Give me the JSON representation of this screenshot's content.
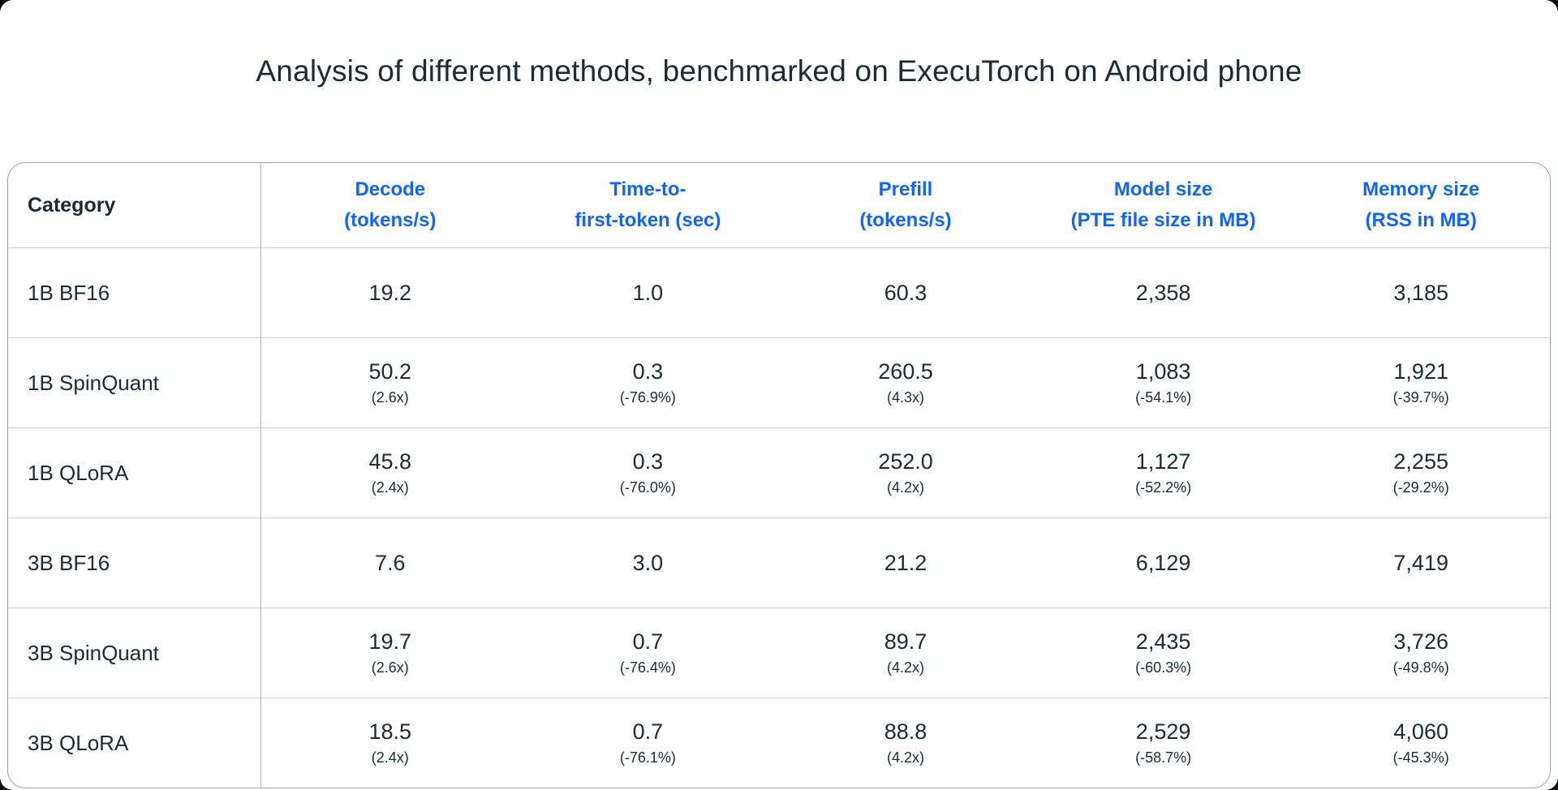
{
  "page": {
    "title": "Analysis of different methods, benchmarked on ExecuTorch on Android phone"
  },
  "colors": {
    "accent_blue": "#1165EF",
    "text_dark": "#1C2B33",
    "outer_border": "#97A4AE",
    "row_divider": "#C8D1D8",
    "column_divider": "#A9B5BE",
    "card_background": "#FFFFFF"
  },
  "table": {
    "category_header": "Category",
    "column_headers": [
      {
        "line1": "Decode",
        "line2": "(tokens/s)"
      },
      {
        "line1": "Time-to-",
        "line2": "first-token (sec)"
      },
      {
        "line1": "Prefill",
        "line2": "(tokens/s)"
      },
      {
        "line1": "Model size",
        "line2": "(PTE file size in MB)"
      },
      {
        "line1": "Memory size",
        "line2": "(RSS in MB)"
      }
    ],
    "rows": [
      {
        "category": "1B BF16",
        "cells": [
          {
            "value": "19.2",
            "sub": ""
          },
          {
            "value": "1.0",
            "sub": ""
          },
          {
            "value": "60.3",
            "sub": ""
          },
          {
            "value": "2,358",
            "sub": ""
          },
          {
            "value": "3,185",
            "sub": ""
          }
        ]
      },
      {
        "category": "1B SpinQuant",
        "cells": [
          {
            "value": "50.2",
            "sub": "(2.6x)"
          },
          {
            "value": "0.3",
            "sub": "(-76.9%)"
          },
          {
            "value": "260.5",
            "sub": "(4.3x)"
          },
          {
            "value": "1,083",
            "sub": "(-54.1%)"
          },
          {
            "value": "1,921",
            "sub": "(-39.7%)"
          }
        ]
      },
      {
        "category": "1B QLoRA",
        "cells": [
          {
            "value": "45.8",
            "sub": "(2.4x)"
          },
          {
            "value": "0.3",
            "sub": "(-76.0%)"
          },
          {
            "value": "252.0",
            "sub": "(4.2x)"
          },
          {
            "value": "1,127",
            "sub": "(-52.2%)"
          },
          {
            "value": "2,255",
            "sub": "(-29.2%)"
          }
        ]
      },
      {
        "category": "3B BF16",
        "cells": [
          {
            "value": "7.6",
            "sub": ""
          },
          {
            "value": "3.0",
            "sub": ""
          },
          {
            "value": "21.2",
            "sub": ""
          },
          {
            "value": "6,129",
            "sub": ""
          },
          {
            "value": "7,419",
            "sub": ""
          }
        ]
      },
      {
        "category": "3B SpinQuant",
        "cells": [
          {
            "value": "19.7",
            "sub": "(2.6x)"
          },
          {
            "value": "0.7",
            "sub": "(-76.4%)"
          },
          {
            "value": "89.7",
            "sub": "(4.2x)"
          },
          {
            "value": "2,435",
            "sub": "(-60.3%)"
          },
          {
            "value": "3,726",
            "sub": "(-49.8%)"
          }
        ]
      },
      {
        "category": "3B QLoRA",
        "cells": [
          {
            "value": "18.5",
            "sub": "(2.4x)"
          },
          {
            "value": "0.7",
            "sub": "(-76.1%)"
          },
          {
            "value": "88.8",
            "sub": "(4.2x)"
          },
          {
            "value": "2,529",
            "sub": "(-58.7%)"
          },
          {
            "value": "4,060",
            "sub": "(-45.3%)"
          }
        ]
      }
    ]
  },
  "chart_data": {
    "type": "table",
    "title": "Analysis of different methods, benchmarked on ExecuTorch on Android phone",
    "columns": [
      "Category",
      "Decode (tokens/s)",
      "Time-to-first-token (sec)",
      "Prefill (tokens/s)",
      "Model size (PTE file size in MB)",
      "Memory size (RSS in MB)"
    ],
    "rows": [
      [
        "1B BF16",
        19.2,
        1.0,
        60.3,
        2358,
        3185
      ],
      [
        "1B SpinQuant",
        50.2,
        0.3,
        260.5,
        1083,
        1921
      ],
      [
        "1B QLoRA",
        45.8,
        0.3,
        252.0,
        1127,
        2255
      ],
      [
        "3B BF16",
        7.6,
        3.0,
        21.2,
        6129,
        7419
      ],
      [
        "3B SpinQuant",
        19.7,
        0.7,
        89.7,
        2435,
        3726
      ],
      [
        "3B QLoRA",
        18.5,
        0.7,
        88.8,
        2529,
        4060
      ]
    ],
    "relative_changes_vs_bf16": [
      [
        "1B SpinQuant",
        "2.6x",
        "-76.9%",
        "4.3x",
        "-54.1%",
        "-39.7%"
      ],
      [
        "1B QLoRA",
        "2.4x",
        "-76.0%",
        "4.2x",
        "-52.2%",
        "-29.2%"
      ],
      [
        "3B SpinQuant",
        "2.6x",
        "-76.4%",
        "4.2x",
        "-60.3%",
        "-49.8%"
      ],
      [
        "3B QLoRA",
        "2.4x",
        "-76.1%",
        "4.2x",
        "-58.7%",
        "-45.3%"
      ]
    ]
  }
}
